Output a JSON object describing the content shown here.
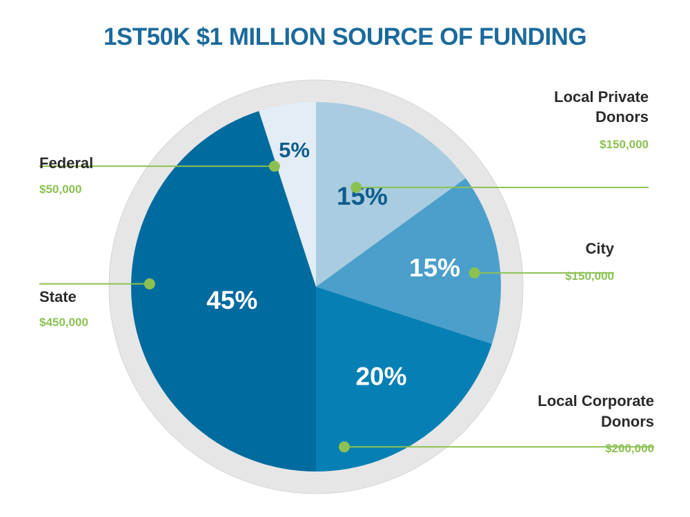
{
  "title": "1ST50K $1 MILLION SOURCE OF FUNDING",
  "colors": {
    "title": "#1b6a9c",
    "accent_green": "#8cc152",
    "ring": "#e6e6e6",
    "ring_edge": "#d4d4d4"
  },
  "chart_data": {
    "type": "pie",
    "title": "1ST50K $1 MILLION SOURCE OF FUNDING",
    "total": 1000000,
    "slices": [
      {
        "name_lines": [
          "Local Private",
          "Donors"
        ],
        "amount": "$150,000",
        "value": 150000,
        "percent_label": "15%",
        "color": "#a9cce0",
        "pct_color": "#0f5c8c"
      },
      {
        "name_lines": [
          "City"
        ],
        "amount": "$150,000",
        "value": 150000,
        "percent_label": "15%",
        "color": "#4b9fcb",
        "pct_color": "#ffffff"
      },
      {
        "name_lines": [
          "Local Corporate",
          "Donors"
        ],
        "amount": "$200,000",
        "value": 200000,
        "percent_label": "20%",
        "color": "#0680b4",
        "pct_color": "#ffffff"
      },
      {
        "name_lines": [
          "State"
        ],
        "amount": "$450,000",
        "value": 450000,
        "percent_label": "45%",
        "color": "#006b9e",
        "pct_color": "#ffffff"
      },
      {
        "name_lines": [
          "Federal"
        ],
        "amount": "$50,000",
        "value": 50000,
        "percent_label": "5%",
        "color": "#e2edf5",
        "pct_color": "#0f5c8c"
      }
    ]
  }
}
